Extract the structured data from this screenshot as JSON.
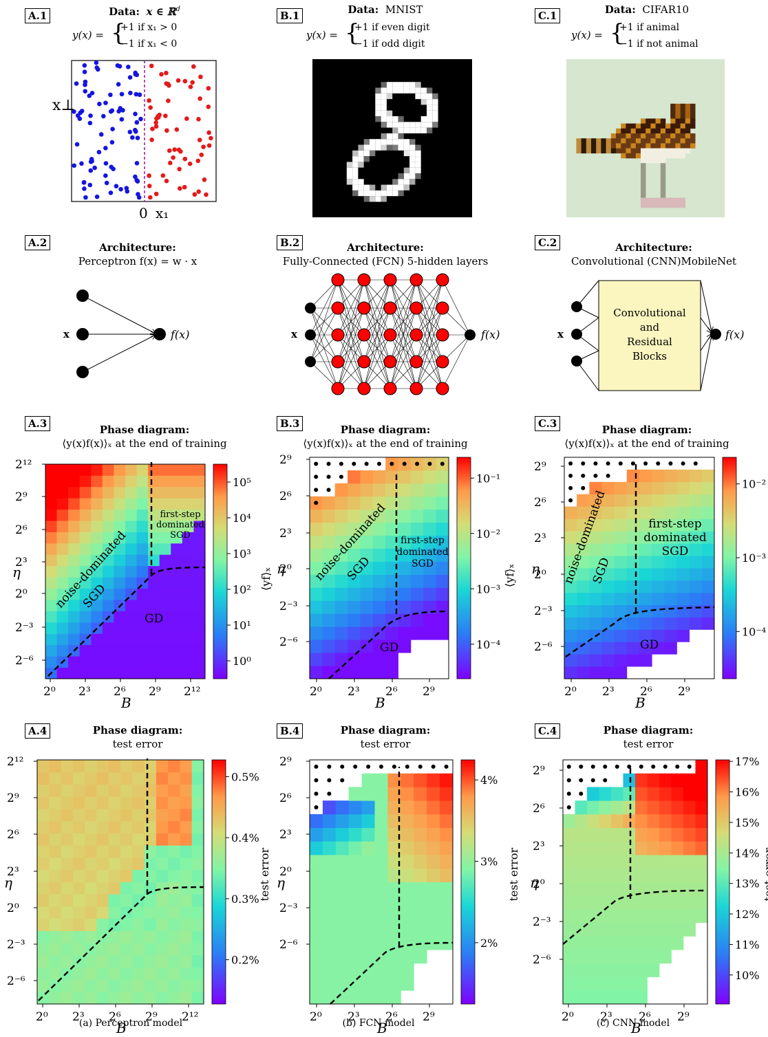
{
  "col_a": {
    "data_tag": "A.1",
    "data_title": "Data:",
    "data_x": "x ∈ ℝ",
    "data_x_sup": "d",
    "label_pos": "+1 if x₁ > 0",
    "label_neg": "−1 if x₁ < 0",
    "x_perp": "x⊥",
    "zero": "0",
    "x1": "x₁",
    "arch_tag": "A.2",
    "arch_title": "Architecture:",
    "arch_sub": "Perceptron f(x) = w · x",
    "input_label": "x",
    "output_label": "f(x)",
    "phase_tag": "A.3",
    "phase_title": "Phase diagram:",
    "phase_sub": "⟨y(x)f(x)⟩ₓ at the end of training",
    "phase_yticks": [
      "2¹²",
      "2⁹",
      "2⁶",
      "2³",
      "2⁰",
      "2⁻³",
      "2⁻⁶"
    ],
    "phase_xticks": [
      "2⁰",
      "2³",
      "2⁶",
      "2⁹",
      "2¹²"
    ],
    "phase_cbar_ticks": [
      "10⁵",
      "10⁴",
      "10³",
      "10²",
      "10¹",
      "10⁰"
    ],
    "phase_cbar_label": "⟨yf⟩ₓ",
    "region_noise": "noise-dominated",
    "region_noise2": "SGD",
    "region_first": "first-step",
    "region_first2": "dominated",
    "region_first3": "SGD",
    "region_gd": "GD",
    "ylabel": "η",
    "xlabel": "B",
    "test_tag": "A.4",
    "test_title": "Phase diagram:",
    "test_sub": "test error",
    "test_cbar_ticks": [
      "0.5%",
      "0.4%",
      "0.3%",
      "0.2%"
    ],
    "test_cbar_label": "test error",
    "caption": "(a) Perceptron model"
  },
  "col_b": {
    "data_tag": "B.1",
    "data_title": "Data:",
    "data_name": "MNIST",
    "label_pos": "+1 if even digit",
    "label_neg": "−1 if odd digit",
    "arch_tag": "B.2",
    "arch_title": "Architecture:",
    "arch_sub": "Fully-Connected (FCN) 5-hidden layers",
    "input_label": "x",
    "output_label": "f(x)",
    "phase_tag": "B.3",
    "phase_title": "Phase diagram:",
    "phase_sub": "⟨y(x)f(x)⟩ₓ at the end of training",
    "phase_yticks": [
      "2⁹",
      "2⁶",
      "2³",
      "2⁰",
      "2⁻³",
      "2⁻⁶"
    ],
    "phase_xticks": [
      "2⁰",
      "2³",
      "2⁶",
      "2⁹"
    ],
    "phase_cbar_ticks": [
      "10⁻¹",
      "10⁻²",
      "10⁻³",
      "10⁻⁴"
    ],
    "phase_cbar_label": "⟨yf⟩ₓ",
    "region_noise": "noise-dominated",
    "region_noise2": "SGD",
    "region_first": "first-step",
    "region_first2": "dominated",
    "region_first3": "SGD",
    "region_gd": "GD",
    "ylabel": "η",
    "xlabel": "B",
    "test_tag": "B.4",
    "test_title": "Phase diagram:",
    "test_sub": "test error",
    "test_cbar_ticks": [
      "4%",
      "3%",
      "2%"
    ],
    "test_cbar_label": "test error",
    "caption": "(b) FCN model"
  },
  "col_c": {
    "data_tag": "C.1",
    "data_title": "Data:",
    "data_name": "CIFAR10",
    "label_pos": "+1 if animal",
    "label_neg": "−1 if not animal",
    "arch_tag": "C.2",
    "arch_title": "Architecture:",
    "arch_sub": "Convolutional (CNN)MobileNet",
    "block_l1": "Convolutional",
    "block_l2": "and",
    "block_l3": "Residual",
    "block_l4": "Blocks",
    "input_label": "x",
    "output_label": "f(x)",
    "phase_tag": "C.3",
    "phase_title": "Phase diagram:",
    "phase_sub": "⟨y(x)f(x)⟩ₓ at the end of training",
    "phase_yticks": [
      "2⁹",
      "2⁶",
      "2³",
      "2⁰",
      "2⁻³",
      "2⁻⁶"
    ],
    "phase_xticks": [
      "2⁰",
      "2³",
      "2⁶",
      "2⁹"
    ],
    "phase_cbar_ticks": [
      "10⁻²",
      "10⁻³",
      "10⁻⁴"
    ],
    "phase_cbar_label": "⟨yf⟩ₓ",
    "region_noise": "noise-dominated",
    "region_noise2": "SGD",
    "region_first": "first-step",
    "region_first2": "dominated",
    "region_first3": "SGD",
    "region_gd": "GD",
    "ylabel": "η",
    "xlabel": "B",
    "test_tag": "C.4",
    "test_title": "Phase diagram:",
    "test_sub": "test error",
    "test_cbar_ticks": [
      "17%",
      "16%",
      "15%",
      "14%",
      "13%",
      "12%",
      "11%",
      "10%"
    ],
    "test_cbar_label": "test error",
    "caption": "(c) CNN model"
  },
  "y_prefix": "y(x) =",
  "colors": {
    "positive": "#e41a1c",
    "negative": "#1515e0",
    "boundary": "#a020a0",
    "block_fill": "#fbf5c0",
    "node": "#000000",
    "fcn_node": "#ff0000"
  }
}
